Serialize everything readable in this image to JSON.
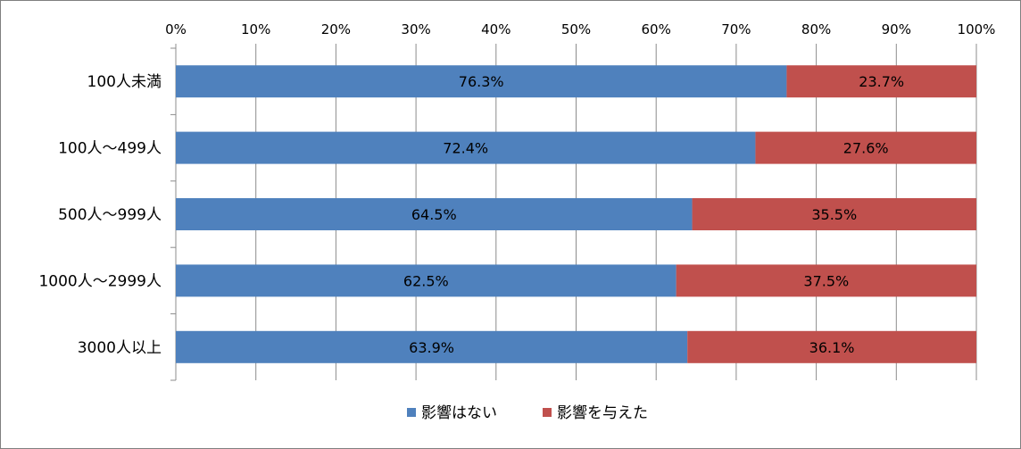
{
  "chart_data": {
    "type": "bar",
    "orientation": "horizontal",
    "stacked": true,
    "percent_stacked": true,
    "categories": [
      "100人未満",
      "100人～499人",
      "500人～999人",
      "1000人～2999人",
      "3000人以上"
    ],
    "series": [
      {
        "name": "影響はない",
        "values": [
          76.3,
          72.4,
          64.5,
          62.5,
          63.9
        ],
        "color": "#4f81bd"
      },
      {
        "name": "影響を与えた",
        "values": [
          23.7,
          27.6,
          35.5,
          37.5,
          36.1
        ],
        "color": "#c0504d"
      }
    ],
    "data_labels": [
      [
        "76.3%",
        "72.4%",
        "64.5%",
        "62.5%",
        "63.9%"
      ],
      [
        "23.7%",
        "27.6%",
        "35.5%",
        "37.5%",
        "36.1%"
      ]
    ],
    "x_ticks": [
      "0%",
      "10%",
      "20%",
      "30%",
      "40%",
      "50%",
      "60%",
      "70%",
      "80%",
      "90%",
      "100%"
    ],
    "xlim": [
      0,
      100
    ],
    "x_axis_position": "top",
    "grid": true,
    "legend_position": "bottom",
    "title": "",
    "xlabel": "",
    "ylabel": ""
  }
}
